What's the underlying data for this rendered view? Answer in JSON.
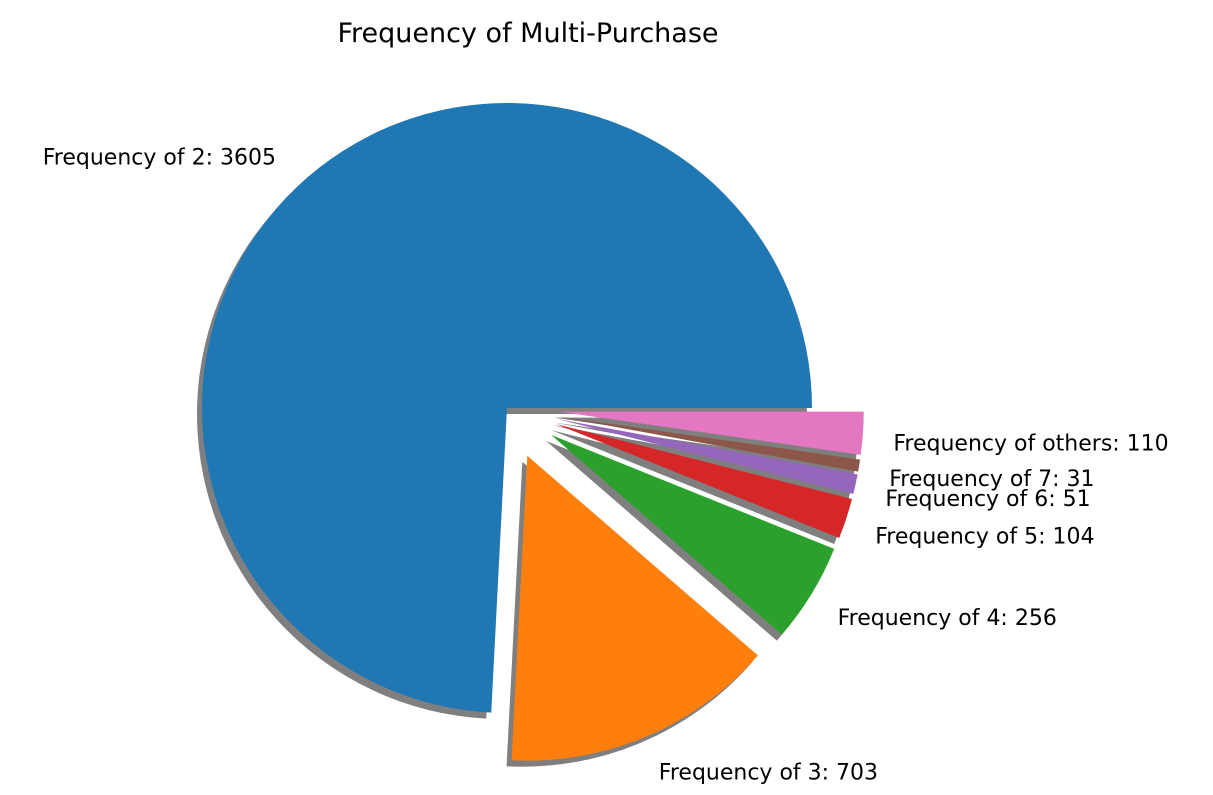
{
  "chart_data": {
    "type": "pie",
    "title": "Frequency of Multi-Purchase",
    "labels": [
      "Frequency of 2: 3605",
      "Frequency of 3: 703",
      "Frequency of 4: 256",
      "Frequency of 5: 104",
      "Frequency of 6: 51",
      "Frequency of 7: 31",
      "Frequency of others: 110"
    ],
    "values": [
      3605,
      703,
      256,
      104,
      51,
      31,
      110
    ],
    "colors": [
      "#1f77b4",
      "#ff7f0e",
      "#2ca02c",
      "#d62728",
      "#9467bd",
      "#8c564b",
      "#e377c2"
    ],
    "exploded": [
      false,
      true,
      true,
      true,
      true,
      true,
      true
    ],
    "shadow": true,
    "start_angle_deg": 0,
    "direction": "counterclockwise"
  }
}
